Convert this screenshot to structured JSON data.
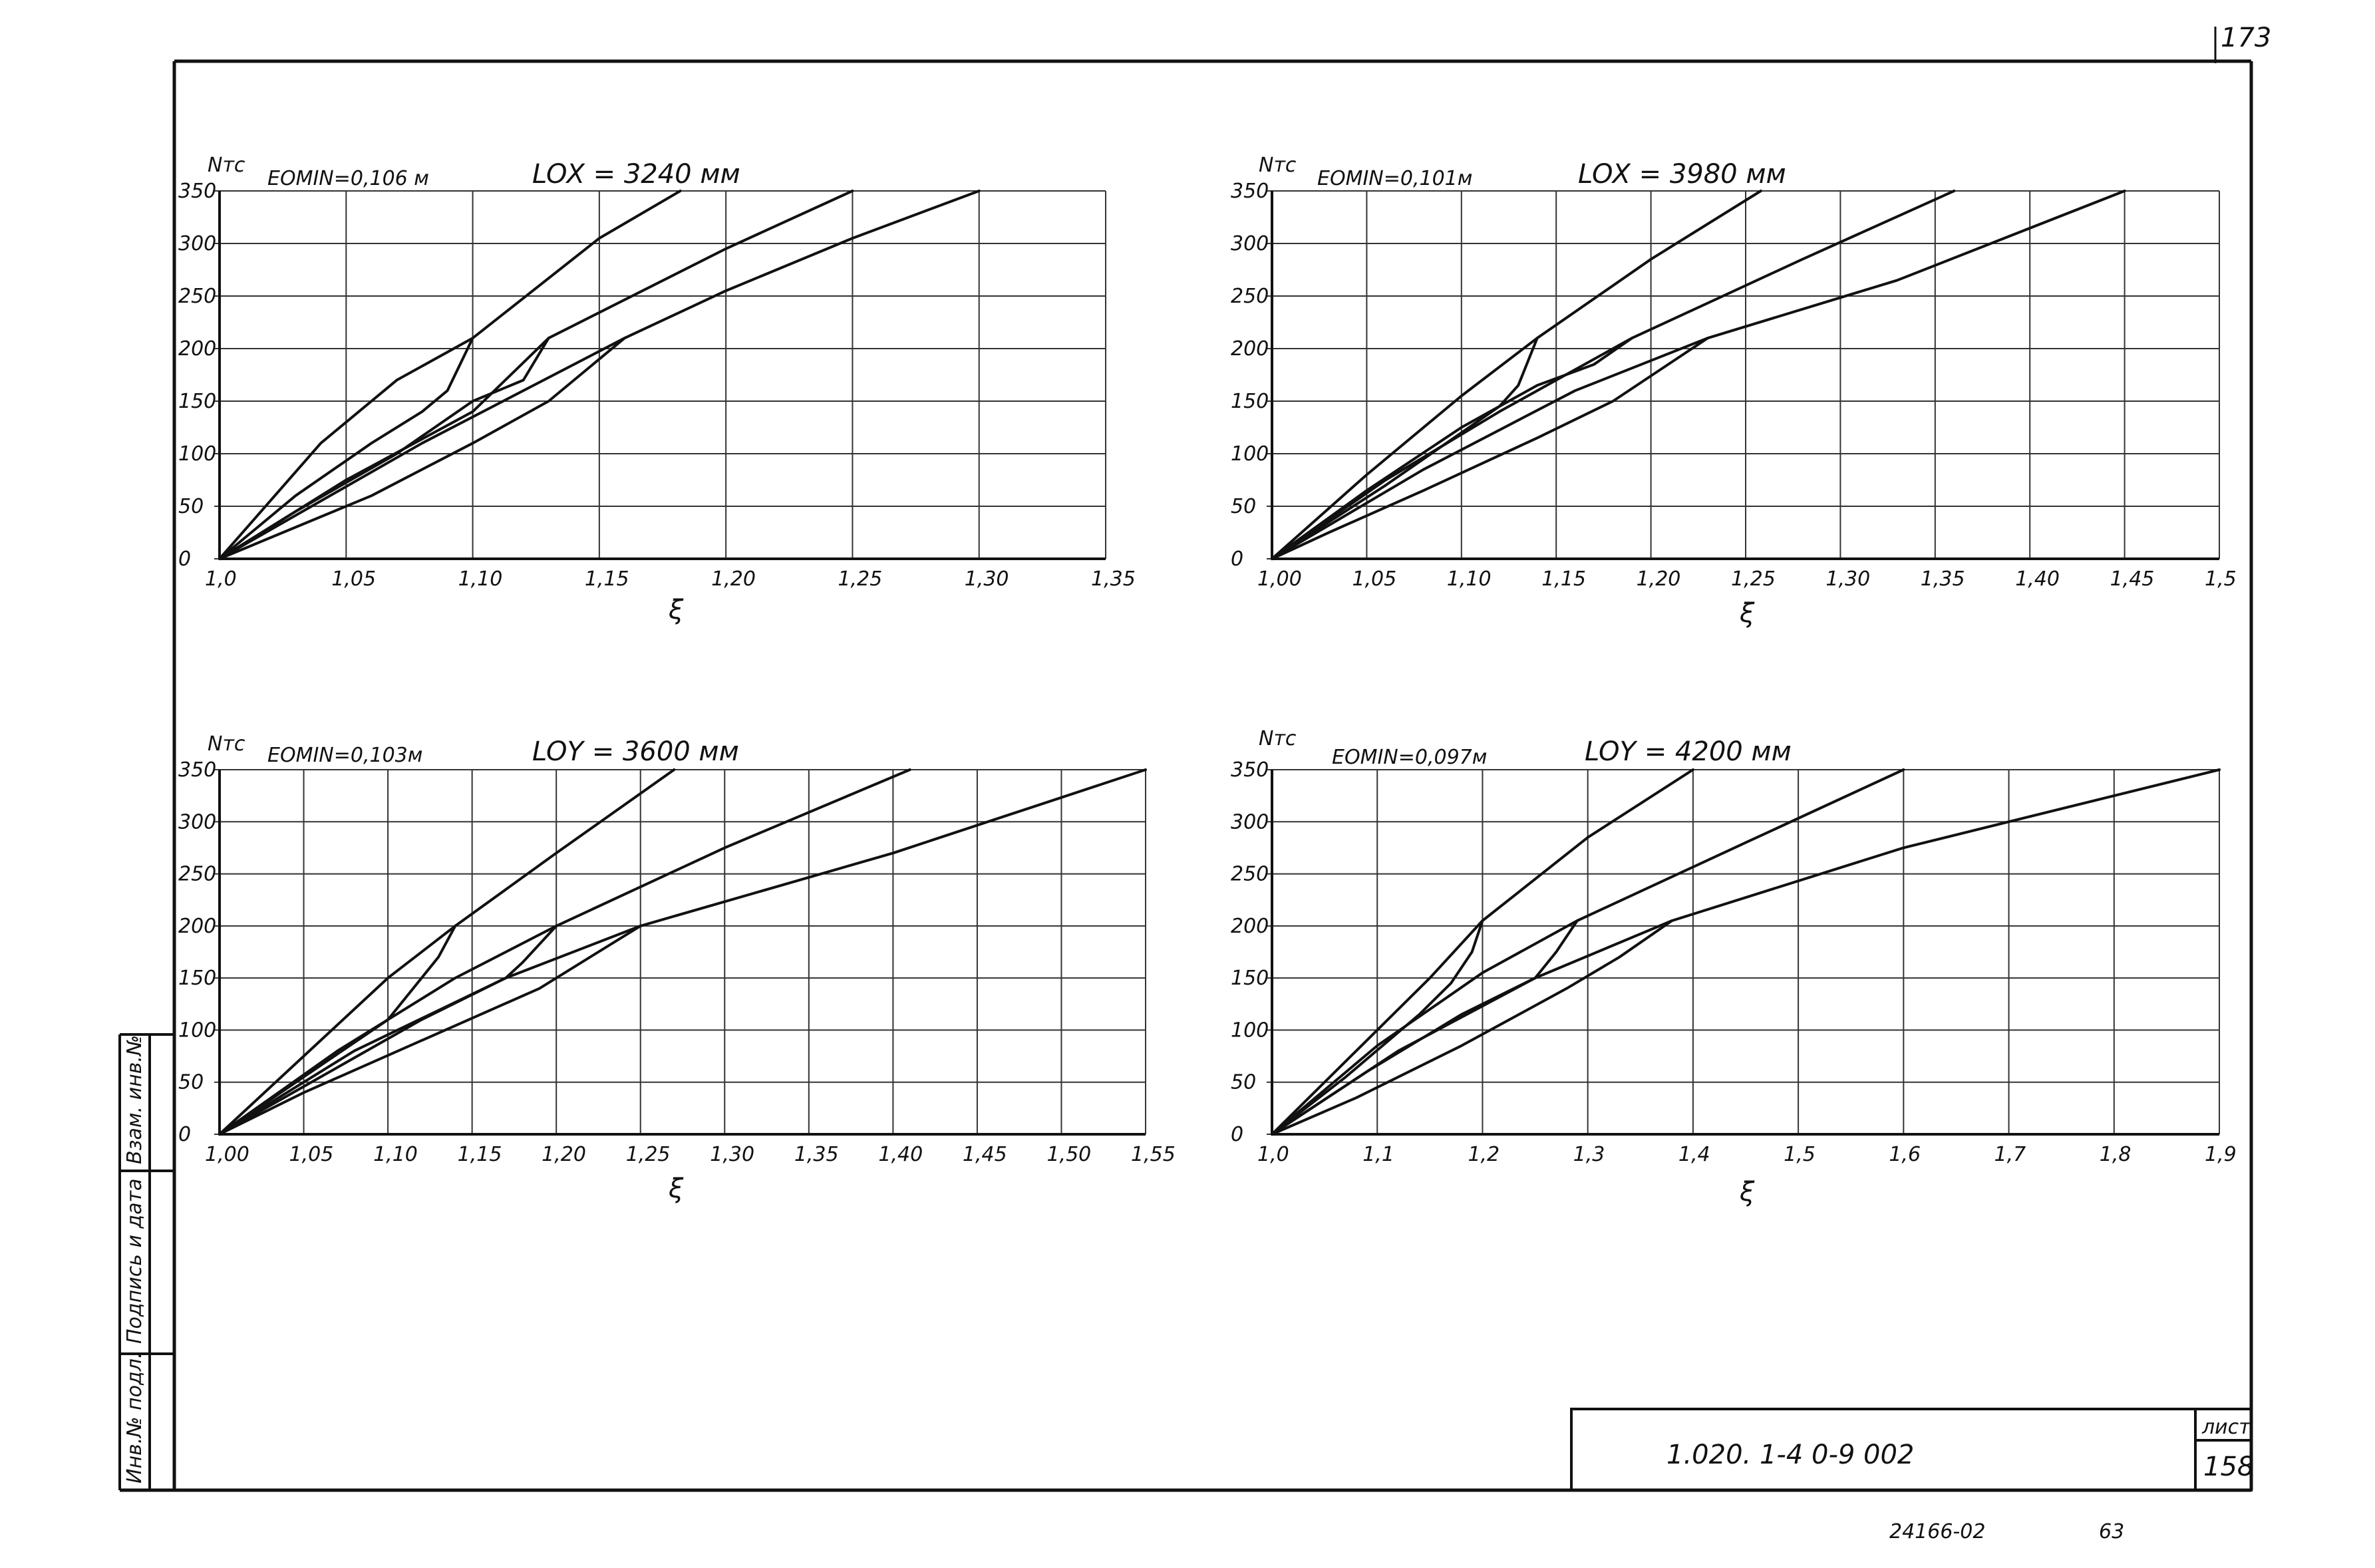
{
  "sheet": {
    "page_number": "173",
    "doc_code": "1.020. 1-4     0-9     002",
    "sheet_label": "лист",
    "sheet_number": "158",
    "bottom_code": "24166-02",
    "bottom_num": "63",
    "side_stamp_1": "Взам. инв.№",
    "side_stamp_2": "Подпись и дата",
    "side_stamp_3": "Инв.№ подл."
  },
  "chart_data": [
    {
      "type": "line",
      "title": "EOMIN=0,106 м",
      "subtitle": "LOX = 3240 мм",
      "ylabel": "Nтс",
      "xlabel": "ξ",
      "xlim": [
        1.0,
        1.35
      ],
      "ylim": [
        0,
        350
      ],
      "xticks": [
        "1,0",
        "1,05",
        "1,10",
        "1,15",
        "1,20",
        "1,25",
        "1,30",
        "1,35"
      ],
      "yticks": [
        "0",
        "50",
        "100",
        "150",
        "200",
        "250",
        "300",
        "350"
      ],
      "grid": true,
      "series": [
        {
          "x": [
            1.0,
            1.04,
            1.07,
            1.1,
            1.15,
            1.182
          ],
          "y": [
            0,
            110,
            170,
            210,
            305,
            350
          ]
        },
        {
          "x": [
            1.1,
            1.09,
            1.08,
            1.06,
            1.03,
            1.0
          ],
          "y": [
            210,
            160,
            140,
            110,
            60,
            0
          ]
        },
        {
          "x": [
            1.0,
            1.05,
            1.1,
            1.13,
            1.2,
            1.25
          ],
          "y": [
            0,
            75,
            140,
            210,
            295,
            350
          ]
        },
        {
          "x": [
            1.13,
            1.12,
            1.1,
            1.07,
            1.03,
            1.0
          ],
          "y": [
            210,
            170,
            150,
            100,
            45,
            0
          ]
        },
        {
          "x": [
            1.0,
            1.08,
            1.16,
            1.2,
            1.25,
            1.3
          ],
          "y": [
            0,
            110,
            210,
            255,
            305,
            350
          ]
        },
        {
          "x": [
            1.16,
            1.13,
            1.1,
            1.06,
            1.02,
            1.0
          ],
          "y": [
            210,
            150,
            110,
            60,
            20,
            0
          ]
        }
      ]
    },
    {
      "type": "line",
      "title": "EOMIN=0,101м",
      "subtitle": "LOX = 3980 мм",
      "ylabel": "Nтс",
      "xlabel": "ξ",
      "xlim": [
        1.0,
        1.5
      ],
      "ylim": [
        0,
        350
      ],
      "xticks": [
        "1,00",
        "1,05",
        "1,10",
        "1,15",
        "1,20",
        "1,25",
        "1,30",
        "1,35",
        "1,40",
        "1,45",
        "1,5"
      ],
      "yticks": [
        "0",
        "50",
        "100",
        "150",
        "200",
        "250",
        "300",
        "350"
      ],
      "grid": true,
      "series": [
        {
          "x": [
            1.0,
            1.05,
            1.1,
            1.14,
            1.2,
            1.258
          ],
          "y": [
            0,
            80,
            155,
            210,
            285,
            350
          ]
        },
        {
          "x": [
            1.14,
            1.13,
            1.12,
            1.1,
            1.06,
            1.0
          ],
          "y": [
            210,
            165,
            145,
            120,
            70,
            0
          ]
        },
        {
          "x": [
            1.0,
            1.06,
            1.12,
            1.19,
            1.28,
            1.36
          ],
          "y": [
            0,
            75,
            140,
            210,
            285,
            350
          ]
        },
        {
          "x": [
            1.19,
            1.17,
            1.14,
            1.1,
            1.05,
            1.0
          ],
          "y": [
            210,
            185,
            165,
            125,
            65,
            0
          ]
        },
        {
          "x": [
            1.0,
            1.08,
            1.16,
            1.23,
            1.33,
            1.45
          ],
          "y": [
            0,
            85,
            160,
            210,
            265,
            350
          ]
        },
        {
          "x": [
            1.23,
            1.18,
            1.14,
            1.08,
            1.03,
            1.0
          ],
          "y": [
            210,
            150,
            115,
            65,
            25,
            0
          ]
        }
      ]
    },
    {
      "type": "line",
      "title": "EOMIN=0,103м",
      "subtitle": "LOY = 3600 мм",
      "ylabel": "Nтс",
      "xlabel": "ξ",
      "xlim": [
        1.0,
        1.55
      ],
      "ylim": [
        0,
        350
      ],
      "xticks": [
        "1,00",
        "1,05",
        "1,10",
        "1,15",
        "1,20",
        "1,25",
        "1,30",
        "1,35",
        "1,40",
        "1,45",
        "1,50",
        "1,55"
      ],
      "yticks": [
        "0",
        "50",
        "100",
        "150",
        "200",
        "250",
        "300",
        "350"
      ],
      "grid": true,
      "series": [
        {
          "x": [
            1.0,
            1.05,
            1.1,
            1.14,
            1.2,
            1.27
          ],
          "y": [
            0,
            75,
            150,
            200,
            270,
            350
          ]
        },
        {
          "x": [
            1.14,
            1.13,
            1.12,
            1.1,
            1.05,
            1.0
          ],
          "y": [
            200,
            170,
            150,
            110,
            55,
            0
          ]
        },
        {
          "x": [
            1.0,
            1.07,
            1.14,
            1.2,
            1.3,
            1.41
          ],
          "y": [
            0,
            80,
            150,
            200,
            275,
            350
          ]
        },
        {
          "x": [
            1.2,
            1.18,
            1.17,
            1.12,
            1.06,
            1.0
          ],
          "y": [
            200,
            165,
            150,
            110,
            55,
            0
          ]
        },
        {
          "x": [
            1.0,
            1.08,
            1.17,
            1.25,
            1.4,
            1.55
          ],
          "y": [
            0,
            80,
            150,
            200,
            270,
            350
          ]
        },
        {
          "x": [
            1.25,
            1.22,
            1.19,
            1.12,
            1.05,
            1.0
          ],
          "y": [
            200,
            170,
            140,
            90,
            40,
            0
          ]
        }
      ]
    },
    {
      "type": "line",
      "title": "EOMIN=0,097м",
      "subtitle": "LOY = 4200 мм",
      "ylabel": "Nтс",
      "xlabel": "ξ",
      "xlim": [
        1.0,
        1.9
      ],
      "ylim": [
        0,
        350
      ],
      "xticks": [
        "1,0",
        "1,1",
        "1,2",
        "1,3",
        "1,4",
        "1,5",
        "1,6",
        "1,7",
        "1,8",
        "1,9"
      ],
      "yticks": [
        "0",
        "50",
        "100",
        "150",
        "200",
        "250",
        "300",
        "350"
      ],
      "grid": true,
      "series": [
        {
          "x": [
            1.0,
            1.08,
            1.15,
            1.2,
            1.3,
            1.4
          ],
          "y": [
            0,
            80,
            150,
            205,
            285,
            350
          ]
        },
        {
          "x": [
            1.2,
            1.19,
            1.17,
            1.14,
            1.07,
            1.0
          ],
          "y": [
            205,
            175,
            145,
            115,
            55,
            0
          ]
        },
        {
          "x": [
            1.0,
            1.1,
            1.2,
            1.29,
            1.45,
            1.6
          ],
          "y": [
            0,
            85,
            155,
            205,
            280,
            350
          ]
        },
        {
          "x": [
            1.29,
            1.27,
            1.25,
            1.18,
            1.09,
            1.0
          ],
          "y": [
            205,
            175,
            150,
            115,
            60,
            0
          ]
        },
        {
          "x": [
            1.0,
            1.12,
            1.25,
            1.38,
            1.6,
            1.9
          ],
          "y": [
            0,
            80,
            150,
            205,
            275,
            350
          ]
        },
        {
          "x": [
            1.38,
            1.33,
            1.28,
            1.18,
            1.08,
            1.0
          ],
          "y": [
            205,
            170,
            140,
            85,
            35,
            0
          ]
        }
      ]
    }
  ]
}
